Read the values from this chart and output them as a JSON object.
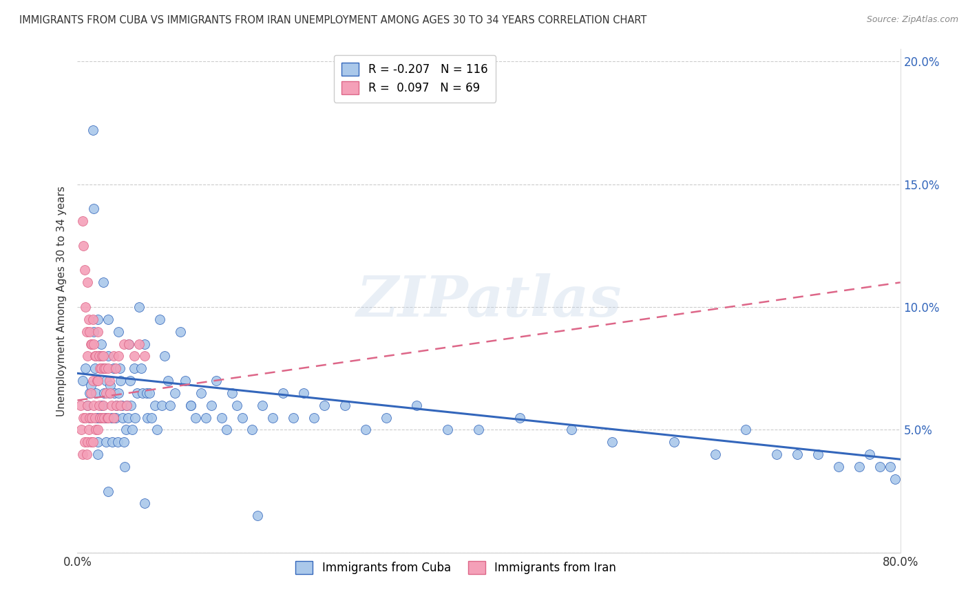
{
  "title": "IMMIGRANTS FROM CUBA VS IMMIGRANTS FROM IRAN UNEMPLOYMENT AMONG AGES 30 TO 34 YEARS CORRELATION CHART",
  "source": "Source: ZipAtlas.com",
  "ylabel": "Unemployment Among Ages 30 to 34 years",
  "xlim": [
    0.0,
    0.8
  ],
  "ylim": [
    0.0,
    0.205
  ],
  "cuba_R": -0.207,
  "cuba_N": 116,
  "iran_R": 0.097,
  "iran_N": 69,
  "cuba_color": "#aac8ea",
  "iran_color": "#f4a0b8",
  "cuba_line_color": "#3366bb",
  "iran_line_color": "#dd6688",
  "watermark": "ZIPatlas",
  "legend_cuba_label": "Immigrants from Cuba",
  "legend_iran_label": "Immigrants from Iran",
  "cuba_x": [
    0.005,
    0.008,
    0.01,
    0.012,
    0.012,
    0.013,
    0.015,
    0.016,
    0.016,
    0.017,
    0.018,
    0.019,
    0.02,
    0.02,
    0.021,
    0.022,
    0.023,
    0.024,
    0.025,
    0.025,
    0.026,
    0.027,
    0.028,
    0.028,
    0.03,
    0.03,
    0.031,
    0.032,
    0.033,
    0.034,
    0.035,
    0.036,
    0.037,
    0.038,
    0.039,
    0.04,
    0.04,
    0.041,
    0.042,
    0.043,
    0.044,
    0.045,
    0.046,
    0.047,
    0.048,
    0.049,
    0.05,
    0.051,
    0.052,
    0.053,
    0.055,
    0.056,
    0.058,
    0.06,
    0.062,
    0.063,
    0.065,
    0.067,
    0.068,
    0.07,
    0.072,
    0.075,
    0.077,
    0.08,
    0.082,
    0.085,
    0.088,
    0.09,
    0.095,
    0.1,
    0.105,
    0.11,
    0.115,
    0.12,
    0.125,
    0.13,
    0.135,
    0.14,
    0.145,
    0.15,
    0.155,
    0.16,
    0.17,
    0.18,
    0.19,
    0.2,
    0.21,
    0.22,
    0.23,
    0.24,
    0.26,
    0.28,
    0.3,
    0.33,
    0.36,
    0.39,
    0.43,
    0.48,
    0.52,
    0.58,
    0.62,
    0.65,
    0.68,
    0.7,
    0.72,
    0.74,
    0.76,
    0.77,
    0.78,
    0.79,
    0.795,
    0.11,
    0.02,
    0.03,
    0.065,
    0.175
  ],
  "cuba_y": [
    0.07,
    0.075,
    0.06,
    0.055,
    0.065,
    0.068,
    0.172,
    0.14,
    0.09,
    0.075,
    0.065,
    0.055,
    0.095,
    0.045,
    0.08,
    0.055,
    0.085,
    0.06,
    0.075,
    0.11,
    0.065,
    0.055,
    0.07,
    0.045,
    0.095,
    0.08,
    0.065,
    0.068,
    0.055,
    0.045,
    0.075,
    0.065,
    0.055,
    0.06,
    0.045,
    0.09,
    0.065,
    0.075,
    0.07,
    0.06,
    0.055,
    0.045,
    0.035,
    0.05,
    0.06,
    0.055,
    0.085,
    0.07,
    0.06,
    0.05,
    0.075,
    0.055,
    0.065,
    0.1,
    0.075,
    0.065,
    0.085,
    0.065,
    0.055,
    0.065,
    0.055,
    0.06,
    0.05,
    0.095,
    0.06,
    0.08,
    0.07,
    0.06,
    0.065,
    0.09,
    0.07,
    0.06,
    0.055,
    0.065,
    0.055,
    0.06,
    0.07,
    0.055,
    0.05,
    0.065,
    0.06,
    0.055,
    0.05,
    0.06,
    0.055,
    0.065,
    0.055,
    0.065,
    0.055,
    0.06,
    0.06,
    0.05,
    0.055,
    0.06,
    0.05,
    0.05,
    0.055,
    0.05,
    0.045,
    0.045,
    0.04,
    0.05,
    0.04,
    0.04,
    0.04,
    0.035,
    0.035,
    0.04,
    0.035,
    0.035,
    0.03,
    0.06,
    0.04,
    0.025,
    0.02,
    0.015
  ],
  "iran_x": [
    0.003,
    0.004,
    0.005,
    0.005,
    0.006,
    0.006,
    0.007,
    0.007,
    0.008,
    0.008,
    0.009,
    0.009,
    0.01,
    0.01,
    0.01,
    0.01,
    0.011,
    0.011,
    0.012,
    0.012,
    0.013,
    0.013,
    0.013,
    0.014,
    0.014,
    0.015,
    0.015,
    0.015,
    0.016,
    0.016,
    0.017,
    0.017,
    0.018,
    0.018,
    0.019,
    0.02,
    0.02,
    0.02,
    0.021,
    0.021,
    0.022,
    0.022,
    0.023,
    0.024,
    0.024,
    0.025,
    0.025,
    0.026,
    0.026,
    0.027,
    0.028,
    0.029,
    0.03,
    0.03,
    0.031,
    0.032,
    0.033,
    0.035,
    0.035,
    0.037,
    0.038,
    0.04,
    0.042,
    0.045,
    0.048,
    0.05,
    0.055,
    0.06,
    0.065
  ],
  "iran_y": [
    0.06,
    0.05,
    0.135,
    0.04,
    0.125,
    0.055,
    0.115,
    0.045,
    0.1,
    0.055,
    0.09,
    0.04,
    0.11,
    0.08,
    0.06,
    0.045,
    0.095,
    0.05,
    0.09,
    0.055,
    0.085,
    0.065,
    0.045,
    0.085,
    0.055,
    0.095,
    0.07,
    0.045,
    0.085,
    0.06,
    0.08,
    0.055,
    0.08,
    0.05,
    0.07,
    0.09,
    0.07,
    0.05,
    0.08,
    0.06,
    0.075,
    0.055,
    0.075,
    0.08,
    0.055,
    0.08,
    0.06,
    0.075,
    0.055,
    0.075,
    0.065,
    0.055,
    0.075,
    0.055,
    0.07,
    0.065,
    0.06,
    0.08,
    0.055,
    0.075,
    0.06,
    0.08,
    0.06,
    0.085,
    0.06,
    0.085,
    0.08,
    0.085,
    0.08
  ],
  "cuba_trendline_x": [
    0.0,
    0.8
  ],
  "cuba_trendline_y": [
    0.073,
    0.038
  ],
  "iran_trendline_x": [
    0.0,
    0.8
  ],
  "iran_trendline_y": [
    0.062,
    0.11
  ]
}
